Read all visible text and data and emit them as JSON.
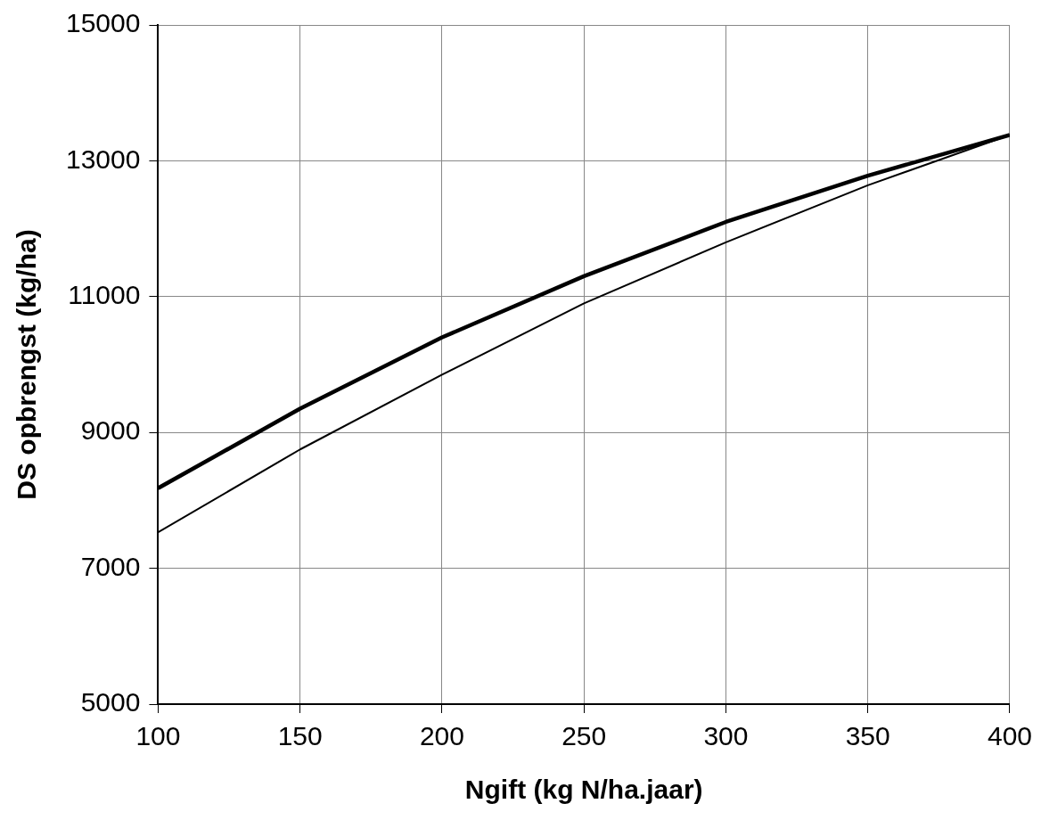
{
  "chart_data": {
    "type": "line",
    "xlabel": "Ngift (kg N/ha.jaar)",
    "ylabel": "DS opbrengst (kg/ha)",
    "x": [
      100,
      150,
      200,
      250,
      300,
      350,
      400
    ],
    "series": [
      {
        "color": "#000000",
        "values": [
          8180,
          9350,
          10400,
          11300,
          12100,
          12780,
          13380
        ]
      },
      {
        "color": "#000000",
        "values": [
          7530,
          8750,
          9850,
          10900,
          11800,
          12640,
          13380
        ]
      }
    ],
    "xlim": [
      100,
      400
    ],
    "xticks": [
      100,
      150,
      200,
      250,
      300,
      350,
      400
    ],
    "ylim": [
      5000,
      15000
    ],
    "yticks": [
      5000,
      7000,
      9000,
      11000,
      13000,
      15000
    ],
    "grid": true,
    "legend": false,
    "marker": "none",
    "line_style": "solid"
  }
}
